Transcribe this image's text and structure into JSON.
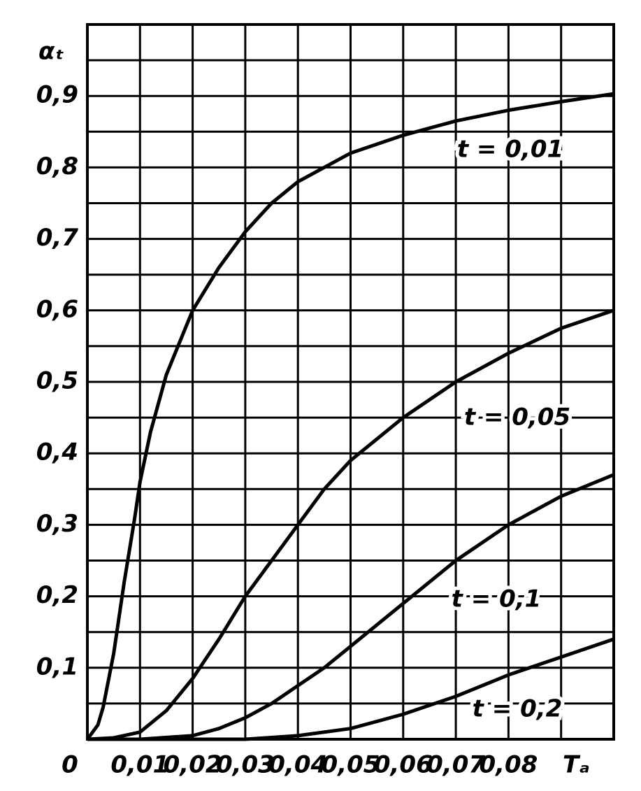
{
  "chart_data": {
    "type": "line",
    "xlabel": "Tₐ",
    "ylabel": "αₜ",
    "xlim": [
      0,
      0.1
    ],
    "ylim": [
      0,
      1.0
    ],
    "xticks": [
      {
        "value": 0,
        "label": "0"
      },
      {
        "value": 0.01,
        "label": "0,01"
      },
      {
        "value": 0.02,
        "label": "0,02"
      },
      {
        "value": 0.03,
        "label": "0,03"
      },
      {
        "value": 0.04,
        "label": "0,04"
      },
      {
        "value": 0.05,
        "label": "0,05"
      },
      {
        "value": 0.06,
        "label": "0,06"
      },
      {
        "value": 0.07,
        "label": "0,07"
      },
      {
        "value": 0.08,
        "label": "0,08"
      }
    ],
    "minor_xticks": [
      0.09
    ],
    "yticks": [
      {
        "value": 0.1,
        "label": "0,1"
      },
      {
        "value": 0.2,
        "label": "0,2"
      },
      {
        "value": 0.3,
        "label": "0,3"
      },
      {
        "value": 0.4,
        "label": "0,4"
      },
      {
        "value": 0.5,
        "label": "0,5"
      },
      {
        "value": 0.6,
        "label": "0,6"
      },
      {
        "value": 0.7,
        "label": "0,7"
      },
      {
        "value": 0.8,
        "label": "0,8"
      },
      {
        "value": 0.9,
        "label": "0,9"
      }
    ],
    "minor_yticks": [
      0.05,
      0.15,
      0.25,
      0.35,
      0.45,
      0.55,
      0.65,
      0.75,
      0.85,
      0.95
    ],
    "grid": true,
    "series": [
      {
        "name": "t = 0,01",
        "color": "#000000",
        "x": [
          0,
          0.002,
          0.003,
          0.005,
          0.007,
          0.009,
          0.01,
          0.012,
          0.015,
          0.02,
          0.025,
          0.03,
          0.035,
          0.04,
          0.05,
          0.06,
          0.07,
          0.08,
          0.09,
          0.1
        ],
        "values": [
          0,
          0.02,
          0.045,
          0.12,
          0.22,
          0.31,
          0.36,
          0.43,
          0.51,
          0.6,
          0.66,
          0.71,
          0.75,
          0.78,
          0.82,
          0.845,
          0.865,
          0.88,
          0.892,
          0.903
        ]
      },
      {
        "name": "t = 0,05",
        "color": "#000000",
        "x": [
          0,
          0.005,
          0.01,
          0.015,
          0.02,
          0.025,
          0.03,
          0.035,
          0.04,
          0.045,
          0.05,
          0.06,
          0.07,
          0.08,
          0.09,
          0.1
        ],
        "values": [
          0,
          0.002,
          0.01,
          0.04,
          0.085,
          0.14,
          0.2,
          0.25,
          0.3,
          0.35,
          0.39,
          0.45,
          0.5,
          0.54,
          0.575,
          0.6
        ]
      },
      {
        "name": "t = 0,1",
        "color": "#000000",
        "x": [
          0,
          0.01,
          0.02,
          0.025,
          0.03,
          0.035,
          0.04,
          0.045,
          0.05,
          0.06,
          0.07,
          0.08,
          0.09,
          0.1
        ],
        "values": [
          0,
          0,
          0.005,
          0.015,
          0.03,
          0.05,
          0.075,
          0.1,
          0.13,
          0.19,
          0.25,
          0.3,
          0.34,
          0.37
        ]
      },
      {
        "name": "t = 0,2",
        "color": "#000000",
        "x": [
          0,
          0.03,
          0.04,
          0.05,
          0.06,
          0.07,
          0.08,
          0.09,
          0.1
        ],
        "values": [
          0,
          0,
          0.005,
          0.015,
          0.035,
          0.06,
          0.09,
          0.115,
          0.14
        ]
      }
    ]
  }
}
